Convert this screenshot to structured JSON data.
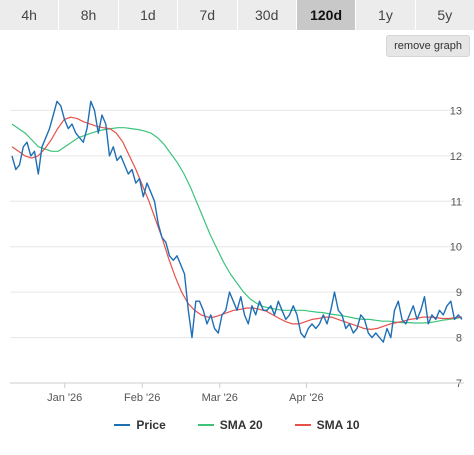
{
  "toolbar": {
    "tabs": [
      {
        "label": "4h"
      },
      {
        "label": "8h"
      },
      {
        "label": "1d"
      },
      {
        "label": "7d"
      },
      {
        "label": "30d"
      },
      {
        "label": "120d"
      },
      {
        "label": "1y"
      },
      {
        "label": "5y"
      }
    ],
    "active_tab": "120d",
    "remove_label": "remove graph"
  },
  "colors": {
    "price": "#1f6fb5",
    "sma20": "#3cc47a",
    "sma10": "#e8504a",
    "grid": "#e6e6e6"
  },
  "chart_data": {
    "type": "line",
    "x_ticks": [
      "Jan '26",
      "Feb '26",
      "Mar '26",
      "Apr '26"
    ],
    "x_tick_positions": [
      0.12,
      0.29,
      0.46,
      0.65
    ],
    "y_ticks": [
      "7",
      "8",
      "9",
      "10",
      "11",
      "12",
      "13"
    ],
    "ylim": [
      7,
      14
    ],
    "grid": true,
    "legend_position": "bottom",
    "series": [
      {
        "name": "Price",
        "color_key": "price",
        "values": [
          12.0,
          11.7,
          11.8,
          12.2,
          12.3,
          12.0,
          12.1,
          11.6,
          12.2,
          12.4,
          12.6,
          12.9,
          13.2,
          13.1,
          12.8,
          12.6,
          12.7,
          12.5,
          12.4,
          12.3,
          12.6,
          13.2,
          13.0,
          12.5,
          12.9,
          12.7,
          12.0,
          12.2,
          11.9,
          12.0,
          11.8,
          11.6,
          11.7,
          11.4,
          11.5,
          11.1,
          11.4,
          11.2,
          11.0,
          10.5,
          10.2,
          10.1,
          9.8,
          9.7,
          9.8,
          9.6,
          9.4,
          8.6,
          8.0,
          8.8,
          8.8,
          8.6,
          8.3,
          8.5,
          8.2,
          8.1,
          8.5,
          8.6,
          9.0,
          8.8,
          8.6,
          8.9,
          8.5,
          8.3,
          8.7,
          8.5,
          8.8,
          8.6,
          8.6,
          8.7,
          8.5,
          8.8,
          8.6,
          8.4,
          8.5,
          8.7,
          8.5,
          8.1,
          8.0,
          8.2,
          8.3,
          8.2,
          8.3,
          8.5,
          8.3,
          8.6,
          9.0,
          8.6,
          8.5,
          8.2,
          8.3,
          8.1,
          8.2,
          8.5,
          8.4,
          8.1,
          8.0,
          8.1,
          8.0,
          7.9,
          8.2,
          8.0,
          8.6,
          8.8,
          8.4,
          8.3,
          8.5,
          8.7,
          8.4,
          8.6,
          8.9,
          8.3,
          8.5,
          8.4,
          8.6,
          8.5,
          8.7,
          8.8,
          8.4,
          8.5,
          8.4
        ]
      },
      {
        "name": "SMA 20",
        "color_key": "sma20",
        "values": [
          12.7,
          12.6,
          12.5,
          12.35,
          12.2,
          12.15,
          12.1,
          12.1,
          12.2,
          12.3,
          12.4,
          12.45,
          12.5,
          12.55,
          12.58,
          12.6,
          12.62,
          12.62,
          12.6,
          12.58,
          12.55,
          12.5,
          12.4,
          12.25,
          12.05,
          11.85,
          11.6,
          11.3,
          10.95,
          10.6,
          10.25,
          9.95,
          9.65,
          9.4,
          9.2,
          9.0,
          8.85,
          8.75,
          8.68,
          8.65,
          8.62,
          8.6,
          8.6,
          8.6,
          8.6,
          8.58,
          8.56,
          8.55,
          8.52,
          8.5,
          8.48,
          8.45,
          8.42,
          8.4,
          8.4,
          8.38,
          8.36,
          8.36,
          8.34,
          8.33,
          8.33,
          8.32,
          8.32,
          8.33,
          8.35,
          8.38,
          8.4,
          8.42,
          8.45
        ]
      },
      {
        "name": "SMA 10",
        "color_key": "sma10",
        "values": [
          12.2,
          12.1,
          12.0,
          11.95,
          12.0,
          12.15,
          12.35,
          12.6,
          12.8,
          12.85,
          12.82,
          12.75,
          12.7,
          12.65,
          12.62,
          12.6,
          12.5,
          12.3,
          12.0,
          11.7,
          11.35,
          11.0,
          10.6,
          10.2,
          9.75,
          9.35,
          9.0,
          8.75,
          8.6,
          8.5,
          8.45,
          8.45,
          8.5,
          8.55,
          8.6,
          8.62,
          8.65,
          8.65,
          8.62,
          8.58,
          8.5,
          8.42,
          8.35,
          8.3,
          8.3,
          8.35,
          8.4,
          8.42,
          8.45,
          8.45,
          8.4,
          8.35,
          8.3,
          8.25,
          8.2,
          8.18,
          8.2,
          8.25,
          8.3,
          8.33,
          8.36,
          8.4,
          8.42,
          8.45,
          8.45,
          8.44,
          8.42,
          8.42,
          8.44,
          8.45
        ]
      }
    ]
  },
  "legend": {
    "items": [
      {
        "label": "Price",
        "color_key": "price"
      },
      {
        "label": "SMA 20",
        "color_key": "sma20"
      },
      {
        "label": "SMA 10",
        "color_key": "sma10"
      }
    ]
  }
}
